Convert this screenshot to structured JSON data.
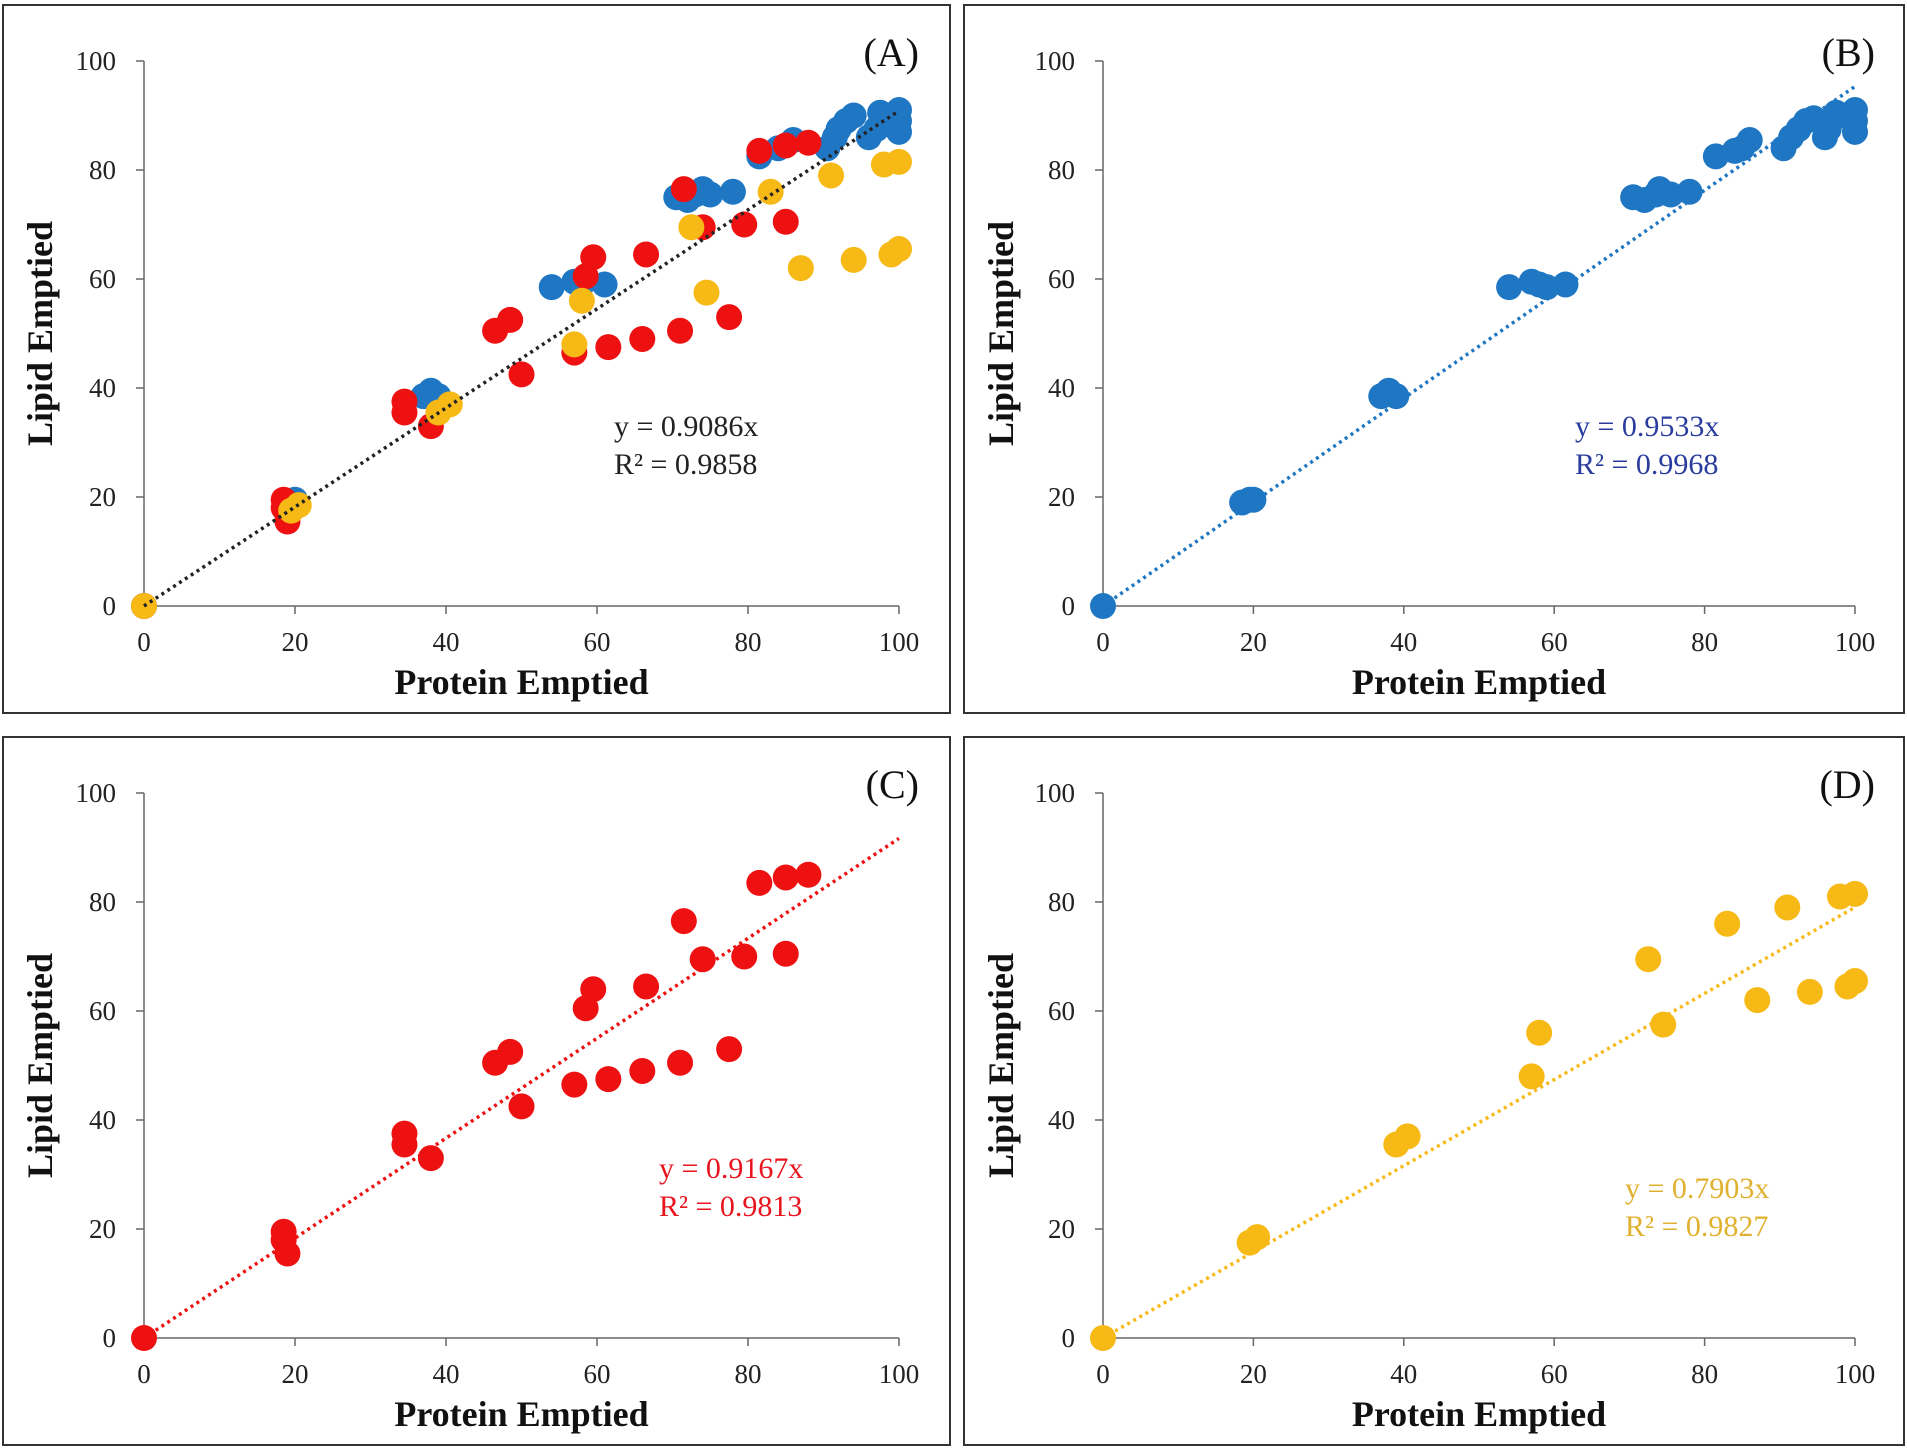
{
  "colors": {
    "blue": "#1f77c4",
    "red": "#ee1111",
    "yellow": "#f7b916",
    "eq_black": "#222222",
    "eq_blue": "#2a3d9e",
    "eq_red": "#e8141e",
    "eq_yellow": "#e0b12e"
  },
  "chart_data": [
    {
      "panel_label": "(A)",
      "type": "scatter",
      "xlabel": "Protein Emptied",
      "ylabel": "Lipid Emptied",
      "xlim": [
        0,
        100
      ],
      "ylim": [
        0,
        100
      ],
      "xticks": [
        "0",
        "20",
        "40",
        "60",
        "80",
        "100"
      ],
      "yticks": [
        "0",
        "20",
        "40",
        "60",
        "80",
        "100"
      ],
      "trendline": {
        "slope": 0.9086,
        "color": "eq_black"
      },
      "equation": "y = 0.9086x",
      "r2": "R² = 0.9858",
      "eq_color": "eq_black",
      "series": [
        {
          "name": "blue",
          "color": "blue",
          "points": [
            [
              0,
              0
            ],
            [
              19,
              19
            ],
            [
              20,
              19.5
            ],
            [
              37,
              38.5
            ],
            [
              38,
              39.5
            ],
            [
              39,
              38.5
            ],
            [
              54,
              58.5
            ],
            [
              57,
              59.5
            ],
            [
              58,
              59
            ],
            [
              61,
              59
            ],
            [
              70.5,
              75
            ],
            [
              72,
              74.5
            ],
            [
              73,
              75.5
            ],
            [
              74,
              76.5
            ],
            [
              75,
              75.5
            ],
            [
              78,
              76
            ],
            [
              81.5,
              82.5
            ],
            [
              84,
              84
            ],
            [
              86,
              85.5
            ],
            [
              90.5,
              84
            ],
            [
              91.5,
              86
            ],
            [
              92,
              87.5
            ],
            [
              93,
              89
            ],
            [
              94,
              90
            ],
            [
              96,
              86
            ],
            [
              97,
              87.5
            ],
            [
              97.5,
              90.5
            ],
            [
              98.5,
              90
            ],
            [
              100,
              91
            ],
            [
              100,
              89
            ],
            [
              100,
              87
            ]
          ]
        },
        {
          "name": "red",
          "color": "red",
          "points": [
            [
              0,
              0
            ],
            [
              18.5,
              18
            ],
            [
              18.5,
              19.5
            ],
            [
              19,
              15.5
            ],
            [
              34.5,
              35.5
            ],
            [
              34.5,
              37.5
            ],
            [
              38,
              33
            ],
            [
              46.5,
              50.5
            ],
            [
              48.5,
              52.5
            ],
            [
              50,
              42.5
            ],
            [
              57,
              46.5
            ],
            [
              58.5,
              60.5
            ],
            [
              59.5,
              64
            ],
            [
              61.5,
              47.5
            ],
            [
              66,
              49
            ],
            [
              66.5,
              64.5
            ],
            [
              71,
              50.5
            ],
            [
              71.5,
              76.5
            ],
            [
              74,
              69.5
            ],
            [
              77.5,
              53
            ],
            [
              79.5,
              70
            ],
            [
              81.5,
              83.5
            ],
            [
              85,
              84.5
            ],
            [
              85,
              70.5
            ],
            [
              88,
              85
            ]
          ]
        },
        {
          "name": "yellow",
          "color": "yellow",
          "points": [
            [
              0,
              0
            ],
            [
              19.5,
              17.5
            ],
            [
              20.5,
              18.5
            ],
            [
              39,
              35.5
            ],
            [
              40.5,
              37
            ],
            [
              57,
              48
            ],
            [
              58,
              56
            ],
            [
              72.5,
              69.5
            ],
            [
              74.5,
              57.5
            ],
            [
              83,
              76
            ],
            [
              87,
              62
            ],
            [
              91,
              79
            ],
            [
              94,
              63.5
            ],
            [
              98,
              81
            ],
            [
              99,
              64.5
            ],
            [
              100,
              81.5
            ],
            [
              100,
              65.5
            ]
          ]
        }
      ]
    },
    {
      "panel_label": "(B)",
      "type": "scatter",
      "xlabel": "Protein Emptied",
      "ylabel": "Lipid Emptied",
      "xlim": [
        0,
        100
      ],
      "ylim": [
        0,
        100
      ],
      "xticks": [
        "0",
        "20",
        "40",
        "60",
        "80",
        "100"
      ],
      "yticks": [
        "0",
        "20",
        "40",
        "60",
        "80",
        "100"
      ],
      "trendline": {
        "slope": 0.9533,
        "color": "blue"
      },
      "equation": "y = 0.9533x",
      "r2": "R² = 0.9968",
      "eq_color": "eq_blue",
      "series": [
        {
          "name": "blue",
          "color": "blue",
          "points": [
            [
              0,
              0
            ],
            [
              18.5,
              19
            ],
            [
              19.5,
              19.5
            ],
            [
              20,
              19.5
            ],
            [
              37,
              38.5
            ],
            [
              38,
              39.5
            ],
            [
              39,
              38.5
            ],
            [
              54,
              58.5
            ],
            [
              57,
              59.5
            ],
            [
              58,
              59
            ],
            [
              59,
              58.5
            ],
            [
              61.5,
              59
            ],
            [
              70.5,
              75
            ],
            [
              72,
              74.5
            ],
            [
              73.5,
              75.5
            ],
            [
              74,
              76.5
            ],
            [
              75.5,
              75.5
            ],
            [
              78,
              76
            ],
            [
              81.5,
              82.5
            ],
            [
              84,
              83.5
            ],
            [
              85,
              84
            ],
            [
              86,
              85.5
            ],
            [
              90.5,
              84
            ],
            [
              91.5,
              86
            ],
            [
              92.5,
              87.5
            ],
            [
              93.5,
              89
            ],
            [
              94.5,
              89.5
            ],
            [
              96,
              86
            ],
            [
              96.5,
              87.5
            ],
            [
              97.5,
              90.5
            ],
            [
              98.5,
              90
            ],
            [
              100,
              91
            ],
            [
              100,
              89
            ],
            [
              100,
              87
            ]
          ]
        }
      ]
    },
    {
      "panel_label": "(C)",
      "type": "scatter",
      "xlabel": "Protein Emptied",
      "ylabel": "Lipid Emptied",
      "xlim": [
        0,
        100
      ],
      "ylim": [
        0,
        100
      ],
      "xticks": [
        "0",
        "20",
        "40",
        "60",
        "80",
        "100"
      ],
      "yticks": [
        "0",
        "20",
        "40",
        "60",
        "80",
        "100"
      ],
      "trendline": {
        "slope": 0.9167,
        "color": "red"
      },
      "equation": "y = 0.9167x",
      "r2": "R² = 0.9813",
      "eq_color": "eq_red",
      "series": [
        {
          "name": "red",
          "color": "red",
          "points": [
            [
              0,
              0
            ],
            [
              18.5,
              18
            ],
            [
              18.5,
              19.5
            ],
            [
              19,
              15.5
            ],
            [
              34.5,
              35.5
            ],
            [
              34.5,
              37.5
            ],
            [
              38,
              33
            ],
            [
              46.5,
              50.5
            ],
            [
              48.5,
              52.5
            ],
            [
              50,
              42.5
            ],
            [
              57,
              46.5
            ],
            [
              58.5,
              60.5
            ],
            [
              59.5,
              64
            ],
            [
              61.5,
              47.5
            ],
            [
              66,
              49
            ],
            [
              66.5,
              64.5
            ],
            [
              71,
              50.5
            ],
            [
              71.5,
              76.5
            ],
            [
              74,
              69.5
            ],
            [
              77.5,
              53
            ],
            [
              79.5,
              70
            ],
            [
              81.5,
              83.5
            ],
            [
              85,
              84.5
            ],
            [
              85,
              70.5
            ],
            [
              88,
              85
            ]
          ]
        }
      ]
    },
    {
      "panel_label": "(D)",
      "type": "scatter",
      "xlabel": "Protein Emptied",
      "ylabel": "Lipid Emptied",
      "xlim": [
        0,
        100
      ],
      "ylim": [
        0,
        100
      ],
      "xticks": [
        "0",
        "20",
        "40",
        "60",
        "80",
        "100"
      ],
      "yticks": [
        "0",
        "20",
        "40",
        "60",
        "80",
        "100"
      ],
      "trendline": {
        "slope": 0.7903,
        "color": "yellow"
      },
      "equation": "y = 0.7903x",
      "r2": "R² = 0.9827",
      "eq_color": "eq_yellow",
      "series": [
        {
          "name": "yellow",
          "color": "yellow",
          "points": [
            [
              0,
              0
            ],
            [
              19.5,
              17.5
            ],
            [
              20.5,
              18.5
            ],
            [
              39,
              35.5
            ],
            [
              40.5,
              37
            ],
            [
              57,
              48
            ],
            [
              58,
              56
            ],
            [
              72.5,
              69.5
            ],
            [
              74.5,
              57.5
            ],
            [
              83,
              76
            ],
            [
              87,
              62
            ],
            [
              91,
              79
            ],
            [
              94,
              63.5
            ],
            [
              98,
              81
            ],
            [
              99,
              64.5
            ],
            [
              100,
              81.5
            ],
            [
              100,
              65.5
            ]
          ]
        }
      ]
    }
  ]
}
